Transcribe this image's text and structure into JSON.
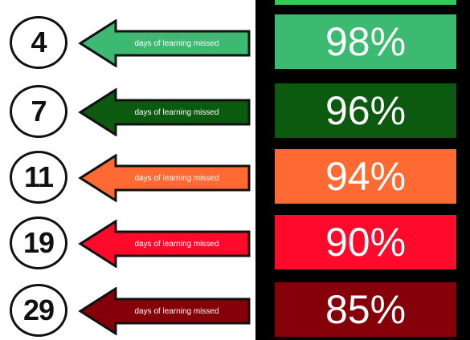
{
  "rows": [
    {
      "days": "4",
      "label": "days of learning missed",
      "percent": "98%",
      "color": "#3dba72"
    },
    {
      "days": "7",
      "label": "days of learning missed",
      "percent": "96%",
      "color": "#0b5a10"
    },
    {
      "days": "11",
      "label": "days of learning missed",
      "percent": "94%",
      "color": "#ff6a33"
    },
    {
      "days": "19",
      "label": "days of learning missed",
      "percent": "90%",
      "color": "#ff0a2a"
    },
    {
      "days": "29",
      "label": "days of learning missed",
      "percent": "85%",
      "color": "#850008"
    }
  ],
  "top_strip_color": "#35c95a"
}
